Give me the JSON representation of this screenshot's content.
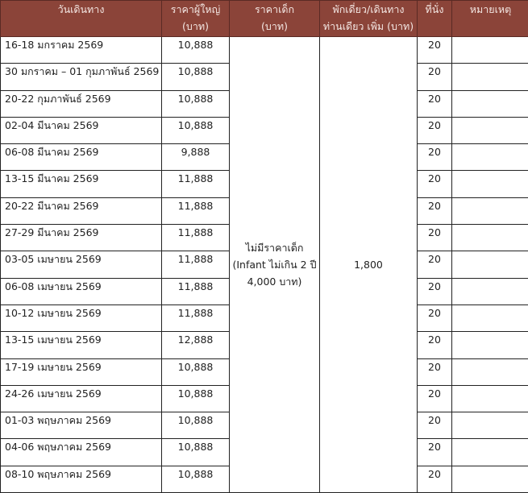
{
  "headers": {
    "date": "วันเดินทาง",
    "adult_line1": "ราคาผู้ใหญ่",
    "adult_line2": "(บาท)",
    "child_line1": "ราคาเด็ก",
    "child_line2": "(บาท)",
    "single_line1": "พักเดี่ยว/เดินทาง",
    "single_line2": "ท่านเดียว เพิ่ม (บาท)",
    "seats": "ที่นั่ง",
    "notes": "หมายเหตุ"
  },
  "child_price": {
    "line1": "ไม่มีราคาเด็ก",
    "line2": "(Infant ไม่เกิน 2 ปี",
    "line3": "4,000 บาท)"
  },
  "single_supplement": "1,800",
  "header_color": "#8b4439",
  "rows": [
    {
      "date": "16-18 มกราคม 2569",
      "price": "10,888",
      "seats": "20"
    },
    {
      "date": "30 มกราคม – 01 กุมภาพันธ์ 2569",
      "price": "10,888",
      "seats": "20"
    },
    {
      "date": "20-22 กุมภาพันธ์ 2569",
      "price": "10,888",
      "seats": "20"
    },
    {
      "date": "02-04 มีนาคม 2569",
      "price": "10,888",
      "seats": "20"
    },
    {
      "date": "06-08 มีนาคม 2569",
      "price": "9,888",
      "seats": "20"
    },
    {
      "date": "13-15 มีนาคม 2569",
      "price": "11,888",
      "seats": "20"
    },
    {
      "date": "20-22 มีนาคม 2569",
      "price": "11,888",
      "seats": "20"
    },
    {
      "date": "27-29 มีนาคม 2569",
      "price": "11,888",
      "seats": "20"
    },
    {
      "date": "03-05 เมษายน 2569",
      "price": "11,888",
      "seats": "20"
    },
    {
      "date": "06-08 เมษายน 2569",
      "price": "11,888",
      "seats": "20"
    },
    {
      "date": "10-12 เมษายน 2569",
      "price": "11,888",
      "seats": "20"
    },
    {
      "date": "13-15 เมษายน 2569",
      "price": "12,888",
      "seats": "20"
    },
    {
      "date": "17-19 เมษายน 2569",
      "price": "10,888",
      "seats": "20"
    },
    {
      "date": "24-26 เมษายน 2569",
      "price": "10,888",
      "seats": "20"
    },
    {
      "date": "01-03 พฤษภาคม 2569",
      "price": "10,888",
      "seats": "20"
    },
    {
      "date": "04-06 พฤษภาคม 2569",
      "price": "10,888",
      "seats": "20"
    },
    {
      "date": "08-10 พฤษภาคม 2569",
      "price": "10,888",
      "seats": "20"
    }
  ]
}
